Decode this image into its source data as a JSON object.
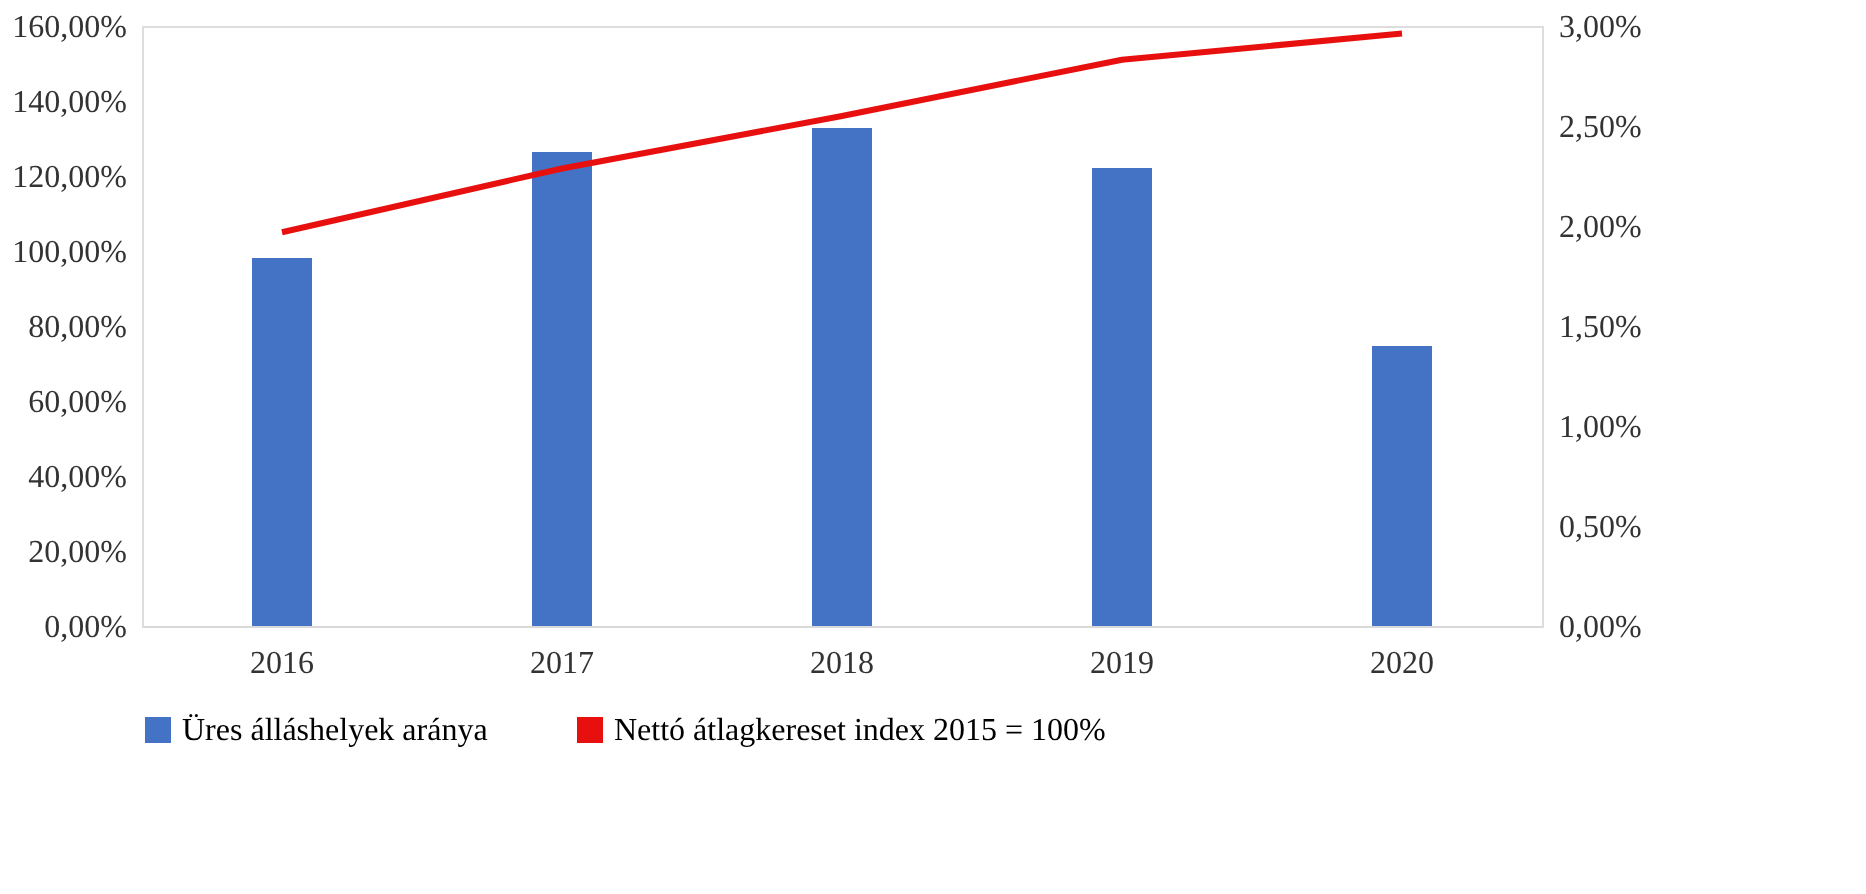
{
  "chart_data": {
    "type": "bar",
    "categories": [
      "2016",
      "2017",
      "2018",
      "2019",
      "2020"
    ],
    "series": [
      {
        "name": "Üres álláshelyek aránya",
        "axis": "y2",
        "color": "#4472c4",
        "values": [
          1.84,
          2.37,
          2.49,
          2.29,
          1.4
        ]
      },
      {
        "name": "Nettó átlagkereset index 2015 = 100%",
        "type": "line",
        "axis": "y",
        "color": "#e8100f",
        "values": [
          105,
          122,
          136,
          151,
          158
        ]
      }
    ],
    "ylim": [
      0,
      160
    ],
    "yticks": [
      {
        "value": 0,
        "label": "0,00%"
      },
      {
        "value": 20,
        "label": "20,00%"
      },
      {
        "value": 40,
        "label": "40,00%"
      },
      {
        "value": 60,
        "label": "60,00%"
      },
      {
        "value": 80,
        "label": "80,00%"
      },
      {
        "value": 100,
        "label": "100,00%"
      },
      {
        "value": 120,
        "label": "120,00%"
      },
      {
        "value": 140,
        "label": "140,00%"
      },
      {
        "value": 160,
        "label": "160,00%"
      }
    ],
    "y2lim": [
      0,
      3
    ],
    "y2ticks": [
      {
        "value": 0,
        "label": "0,00%"
      },
      {
        "value": 0.5,
        "label": "0,50%"
      },
      {
        "value": 1,
        "label": "1,00%"
      },
      {
        "value": 1.5,
        "label": "1,50%"
      },
      {
        "value": 2,
        "label": "2,00%"
      },
      {
        "value": 2.5,
        "label": "2,50%"
      },
      {
        "value": 3,
        "label": "3,00%"
      }
    ],
    "grid": false,
    "legend": "bottom",
    "marker": "none",
    "line_style": "solid"
  }
}
